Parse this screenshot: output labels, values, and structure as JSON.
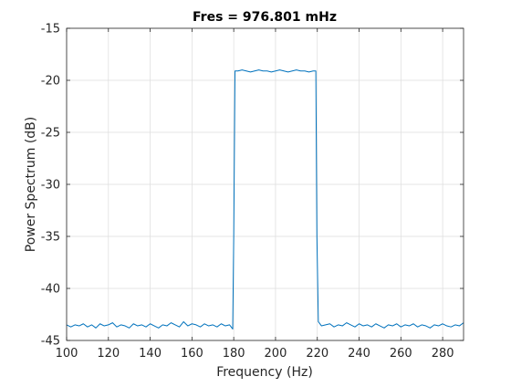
{
  "chart_data": {
    "type": "line",
    "title": "Fres = 976.801 mHz",
    "xlabel": "Frequency (Hz)",
    "ylabel": "Power Spectrum (dB)",
    "xlim": [
      100,
      290
    ],
    "ylim": [
      -45,
      -15
    ],
    "xticks": [
      100,
      120,
      140,
      160,
      180,
      200,
      220,
      240,
      260,
      280
    ],
    "yticks": [
      -45,
      -40,
      -35,
      -30,
      -25,
      -20,
      -15
    ],
    "grid": true,
    "legend": "none",
    "series": [
      {
        "color": "#0072BD",
        "x": [
          100,
          102,
          104,
          106,
          108,
          110,
          112,
          114,
          116,
          118,
          120,
          122,
          124,
          126,
          128,
          130,
          132,
          134,
          136,
          138,
          140,
          142,
          144,
          146,
          148,
          150,
          152,
          154,
          156,
          158,
          160,
          162,
          164,
          166,
          168,
          170,
          172,
          174,
          176,
          178,
          179.5,
          180,
          180.6,
          182,
          184,
          186,
          188,
          190,
          192,
          194,
          196,
          198,
          200,
          202,
          204,
          206,
          208,
          210,
          212,
          214,
          216,
          218,
          219.3,
          219.8,
          220.5,
          222,
          224,
          226,
          228,
          230,
          232,
          234,
          236,
          238,
          240,
          242,
          244,
          246,
          248,
          250,
          252,
          254,
          256,
          258,
          260,
          262,
          264,
          266,
          268,
          270,
          272,
          274,
          276,
          278,
          280,
          282,
          284,
          286,
          288,
          290
        ],
        "y": [
          -43.5,
          -43.7,
          -43.5,
          -43.6,
          -43.4,
          -43.7,
          -43.5,
          -43.8,
          -43.4,
          -43.6,
          -43.5,
          -43.3,
          -43.7,
          -43.5,
          -43.6,
          -43.8,
          -43.4,
          -43.6,
          -43.5,
          -43.7,
          -43.4,
          -43.6,
          -43.8,
          -43.5,
          -43.6,
          -43.3,
          -43.5,
          -43.7,
          -43.2,
          -43.6,
          -43.4,
          -43.5,
          -43.7,
          -43.4,
          -43.6,
          -43.5,
          -43.7,
          -43.4,
          -43.6,
          -43.5,
          -43.9,
          -35.0,
          -19.1,
          -19.1,
          -19.0,
          -19.1,
          -19.2,
          -19.1,
          -19.0,
          -19.1,
          -19.1,
          -19.2,
          -19.1,
          -19.0,
          -19.1,
          -19.2,
          -19.1,
          -19.0,
          -19.1,
          -19.1,
          -19.2,
          -19.1,
          -19.1,
          -35.0,
          -43.2,
          -43.6,
          -43.5,
          -43.4,
          -43.7,
          -43.5,
          -43.6,
          -43.3,
          -43.5,
          -43.7,
          -43.4,
          -43.6,
          -43.5,
          -43.7,
          -43.4,
          -43.6,
          -43.8,
          -43.5,
          -43.6,
          -43.4,
          -43.7,
          -43.5,
          -43.6,
          -43.4,
          -43.7,
          -43.5,
          -43.6,
          -43.8,
          -43.5,
          -43.6,
          -43.4,
          -43.6,
          -43.7,
          -43.5,
          -43.6,
          -43.3
        ]
      }
    ]
  }
}
